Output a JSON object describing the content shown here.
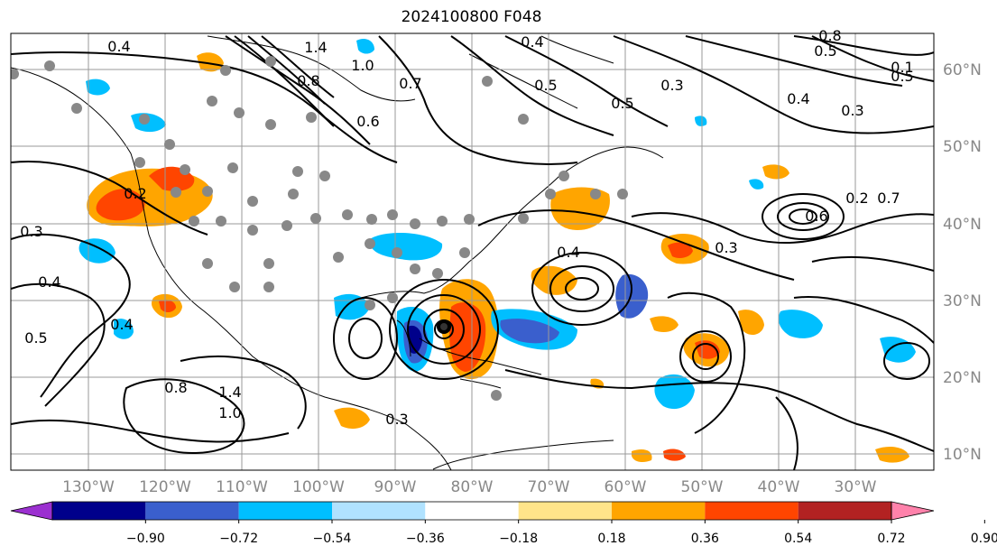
{
  "title": "2024100800 F048",
  "map": {
    "region": "North Atlantic / North America",
    "lon_labels": [
      "130°W",
      "120°W",
      "110°W",
      "100°W",
      "90°W",
      "80°W",
      "70°W",
      "60°W",
      "50°W",
      "40°W",
      "30°W"
    ],
    "lat_labels": [
      "60°N",
      "50°N",
      "40°N",
      "30°N",
      "20°N",
      "10°N"
    ],
    "contour_labels": [
      "0.4",
      "1.4",
      "1.0",
      "0.8",
      "0.7",
      "0.6",
      "0.5",
      "0.4",
      "0.3",
      "0.2",
      "0.1",
      "0.6",
      "0.7",
      "0.4",
      "0.3",
      "0.5",
      "0.4",
      "0.3",
      "0.2",
      "0.4",
      "0.5",
      "0.8",
      "1.4",
      "1.0",
      "0.3",
      "0.8",
      "0.5",
      "0.4",
      "0.3",
      "0.5"
    ],
    "grid": true,
    "station_marker_color": "#888888"
  },
  "colorbar": {
    "ticks": [
      "−0.90",
      "−0.72",
      "−0.54",
      "−0.36",
      "−0.18",
      "0.18",
      "0.36",
      "0.54",
      "0.72",
      "0.90"
    ],
    "colors": [
      "#9b30d0",
      "#00008b",
      "#3a5fcd",
      "#00bfff",
      "#b0e2ff",
      "#ffffff",
      "#ffe48a",
      "#ffa500",
      "#ff4500",
      "#b22222",
      "#ff82ab"
    ]
  }
}
